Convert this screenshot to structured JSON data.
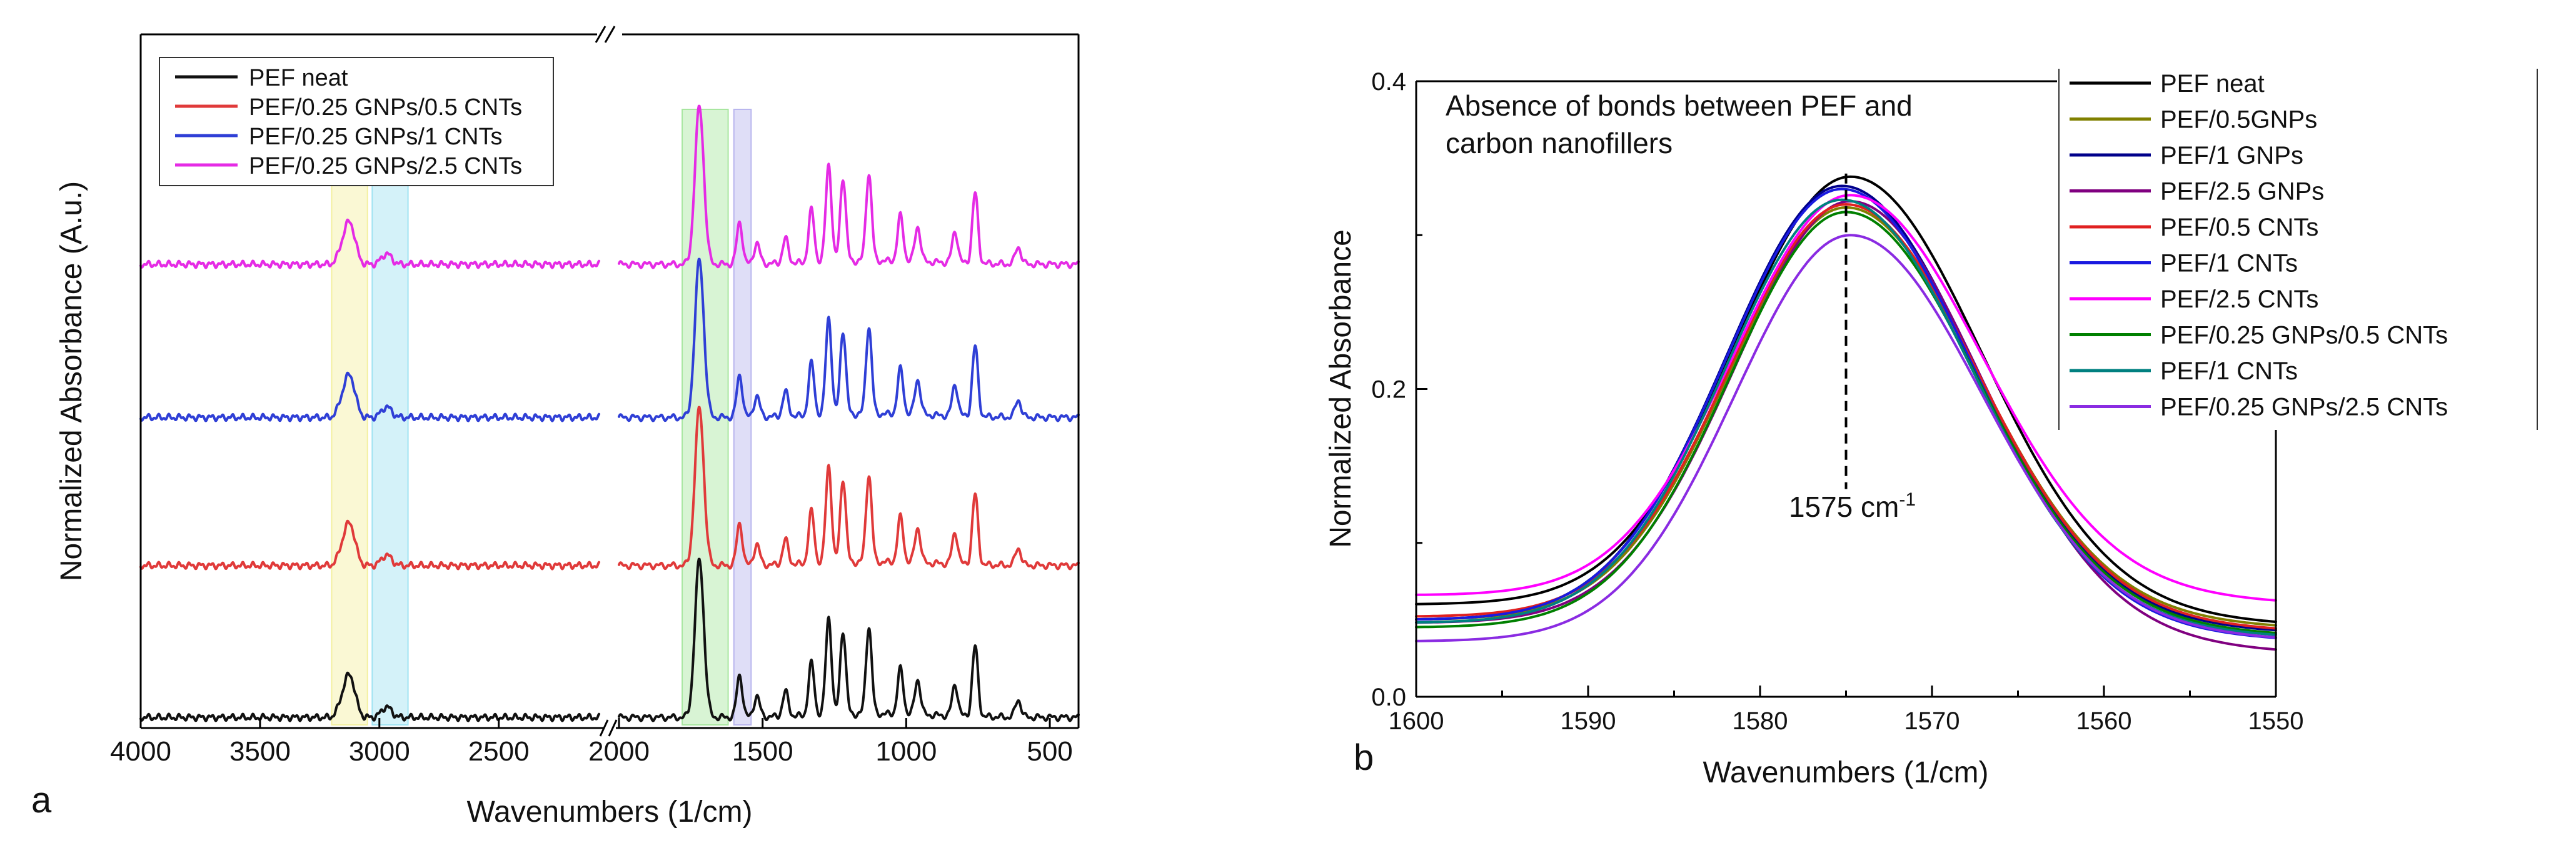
{
  "chart_data": [
    {
      "type": "line",
      "panel_label": "a",
      "xlabel": "Wavenumbers (1/cm)",
      "ylabel": "Normalized Absorbance (A.u.)",
      "x_axis": "reversed, broken between 2080 and 2000",
      "xlim": [
        4000,
        400
      ],
      "x_ticks": [
        "4000",
        "3500",
        "3000",
        "2500",
        "2000",
        "1500",
        "1000",
        "500"
      ],
      "y_ticks": "none",
      "legend_position": "top-left",
      "highlight_bands": [
        {
          "from": 3200,
          "to": 3050,
          "color": "#f3f0a0"
        },
        {
          "from": 3030,
          "to": 2880,
          "color": "#9fe3f2"
        },
        {
          "from": 1780,
          "to": 1620,
          "color": "#a8e6a0"
        },
        {
          "from": 1600,
          "to": 1540,
          "color": "#b9b6ee"
        }
      ],
      "series": [
        {
          "name": "PEF neat",
          "color": "#111111",
          "baseline_offset": 0
        },
        {
          "name": "PEF/0.25 GNPs/0.5 CNTs",
          "color": "#e03a3a",
          "baseline_offset": 1
        },
        {
          "name": "PEF/0.25 GNPs/1 CNTs",
          "color": "#2f3fd6",
          "baseline_offset": 2
        },
        {
          "name": "PEF/0.25 GNPs/2.5 CNTs",
          "color": "#e52be5",
          "baseline_offset": 3
        }
      ],
      "peaks": [
        {
          "x": 3120,
          "h": 0.1
        },
        {
          "x": 3150,
          "h": 0.05
        },
        {
          "x": 2970,
          "h": 0.03
        },
        {
          "x": 1720,
          "h": 0.45
        },
        {
          "x": 1580,
          "h": 0.12
        },
        {
          "x": 1520,
          "h": 0.06
        },
        {
          "x": 1420,
          "h": 0.07
        },
        {
          "x": 1330,
          "h": 0.15
        },
        {
          "x": 1270,
          "h": 0.28
        },
        {
          "x": 1220,
          "h": 0.24
        },
        {
          "x": 1130,
          "h": 0.25
        },
        {
          "x": 1020,
          "h": 0.13
        },
        {
          "x": 960,
          "h": 0.1
        },
        {
          "x": 830,
          "h": 0.09
        },
        {
          "x": 760,
          "h": 0.2
        },
        {
          "x": 610,
          "h": 0.05
        }
      ]
    },
    {
      "type": "line",
      "panel_label": "b",
      "xlabel": "Wavenumbers (1/cm)",
      "ylabel": "Normalized Absorbance",
      "xlim": [
        1600,
        1550
      ],
      "ylim": [
        0.0,
        0.4
      ],
      "x_ticks": [
        "1600",
        "1590",
        "1580",
        "1570",
        "1560",
        "1550"
      ],
      "y_ticks": [
        "0.0",
        "0.2",
        "0.4"
      ],
      "annotation_text": "Absence of bonds  between PEF and carbon nanofillers",
      "annotation_line1": "Absence of bonds  between PEF and",
      "annotation_line2": "carbon nanofillers",
      "marker_x": 1575,
      "marker_label": "1575 cm",
      "marker_label_sup": "-1",
      "legend_position": "top-right",
      "series": [
        {
          "name": "PEF neat",
          "color": "#000000",
          "peak": 0.338,
          "left": 0.06,
          "right": 0.04
        },
        {
          "name": "PEF/0.5GNPs",
          "color": "#808000",
          "peak": 0.318,
          "left": 0.05,
          "right": 0.038
        },
        {
          "name": "PEF/1 GNPs",
          "color": "#00008b",
          "peak": 0.332,
          "left": 0.05,
          "right": 0.035
        },
        {
          "name": "PEF/2.5 GNPs",
          "color": "#800080",
          "peak": 0.322,
          "left": 0.048,
          "right": 0.022
        },
        {
          "name": "PEF/0.5 CNTs",
          "color": "#e02020",
          "peak": 0.32,
          "left": 0.052,
          "right": 0.036
        },
        {
          "name": "PEF/1 CNTs",
          "color": "#1a1ae0",
          "peak": 0.33,
          "left": 0.05,
          "right": 0.03
        },
        {
          "name": "PEF/2.5 CNTs",
          "color": "#ff00ff",
          "peak": 0.326,
          "left": 0.066,
          "right": 0.054
        },
        {
          "name": "PEF/0.25 GNPs/0.5 CNTs",
          "color": "#008000",
          "peak": 0.315,
          "left": 0.045,
          "right": 0.033
        },
        {
          "name": "PEF/1 CNTs",
          "color": "#008080",
          "peak": 0.323,
          "left": 0.048,
          "right": 0.032
        },
        {
          "name": "PEF/0.25 GNPs/2.5 CNTs",
          "color": "#8a2be2",
          "peak": 0.3,
          "left": 0.036,
          "right": 0.03
        }
      ]
    }
  ]
}
